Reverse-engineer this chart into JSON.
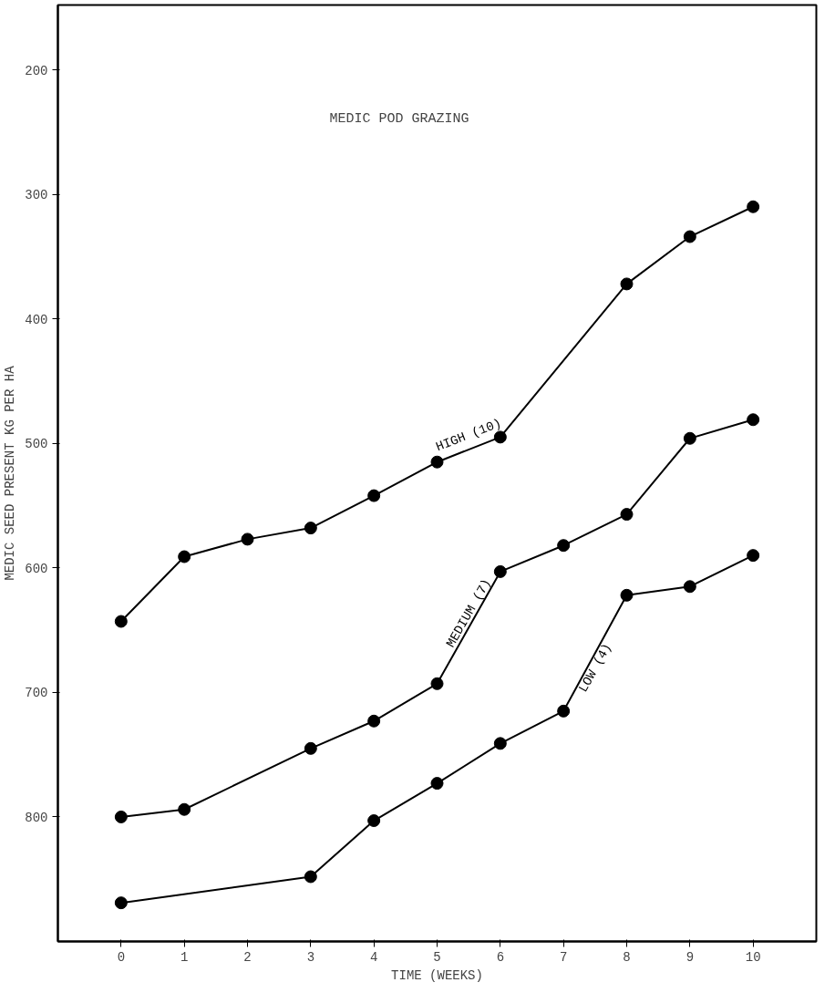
{
  "chart_data": {
    "type": "line",
    "title": "MEDIC POD GRAZING",
    "xlabel": "TIME (WEEKS)",
    "ylabel": "MEDIC SEED PRESENT KG PER HA",
    "xlim": [
      -1.0,
      11.0
    ],
    "xticks": [
      0,
      1,
      2,
      3,
      4,
      5,
      6,
      7,
      8,
      9,
      10
    ],
    "ylim": [
      900,
      148
    ],
    "yticks": [
      200,
      300,
      400,
      500,
      600,
      700,
      800
    ],
    "grid": false,
    "marker": "circle",
    "line_style": "solid",
    "series": [
      {
        "name": "HIGH (10)",
        "color": "#000000",
        "x": [
          0,
          1,
          2,
          3,
          4,
          5,
          6,
          8,
          9,
          10
        ],
        "values": [
          643,
          591,
          577,
          568,
          542,
          515,
          495,
          372,
          334,
          310
        ]
      },
      {
        "name": "MEDIUM (7)",
        "color": "#000000",
        "x": [
          0,
          1,
          3,
          4,
          5,
          6,
          7,
          8,
          9,
          10
        ],
        "values": [
          800,
          794,
          745,
          723,
          693,
          603,
          582,
          557,
          496,
          481
        ]
      },
      {
        "name": "LOW (4)",
        "color": "#000000",
        "x": [
          0,
          3,
          4,
          5,
          6,
          7,
          8,
          9,
          10
        ],
        "values": [
          869,
          848,
          803,
          773,
          741,
          715,
          622,
          615,
          590
        ]
      }
    ]
  }
}
